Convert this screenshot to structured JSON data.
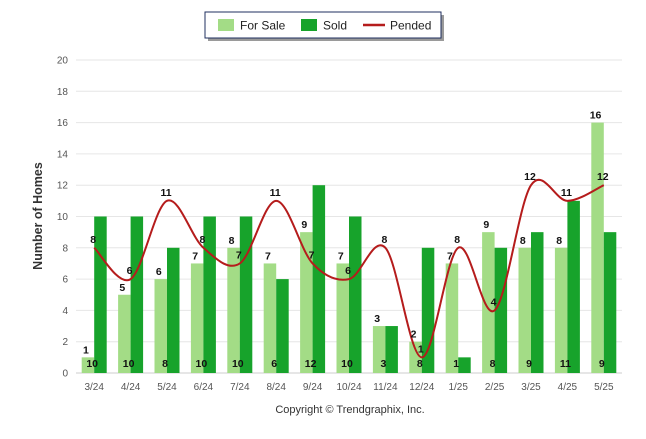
{
  "chart_data": {
    "type": "bar",
    "title": "",
    "xlabel": "",
    "ylabel": "Number of Homes",
    "ylim": [
      0,
      20
    ],
    "yticks": [
      0,
      2,
      4,
      6,
      8,
      10,
      12,
      14,
      16,
      18,
      20
    ],
    "grid": true,
    "legend_position": "top-center",
    "categories": [
      "3/24",
      "4/24",
      "5/24",
      "6/24",
      "7/24",
      "8/24",
      "9/24",
      "10/24",
      "11/24",
      "12/24",
      "1/25",
      "2/25",
      "3/25",
      "4/25",
      "5/25"
    ],
    "series": [
      {
        "name": "For Sale",
        "kind": "bar",
        "color": "#a3dc86",
        "values": [
          1,
          5,
          6,
          7,
          8,
          7,
          9,
          7,
          3,
          2,
          7,
          9,
          8,
          8,
          16
        ]
      },
      {
        "name": "Sold",
        "kind": "bar",
        "color": "#17a32b",
        "values": [
          10,
          10,
          8,
          10,
          10,
          6,
          12,
          10,
          3,
          8,
          1,
          8,
          9,
          11,
          9
        ]
      },
      {
        "name": "Pended",
        "kind": "line",
        "color": "#b51c1c",
        "values": [
          8,
          6,
          11,
          8,
          7,
          11,
          7,
          6,
          8,
          1,
          8,
          4,
          12,
          11,
          12
        ]
      }
    ],
    "annotations": [
      "Copyright © Trendgraphix, Inc."
    ]
  }
}
